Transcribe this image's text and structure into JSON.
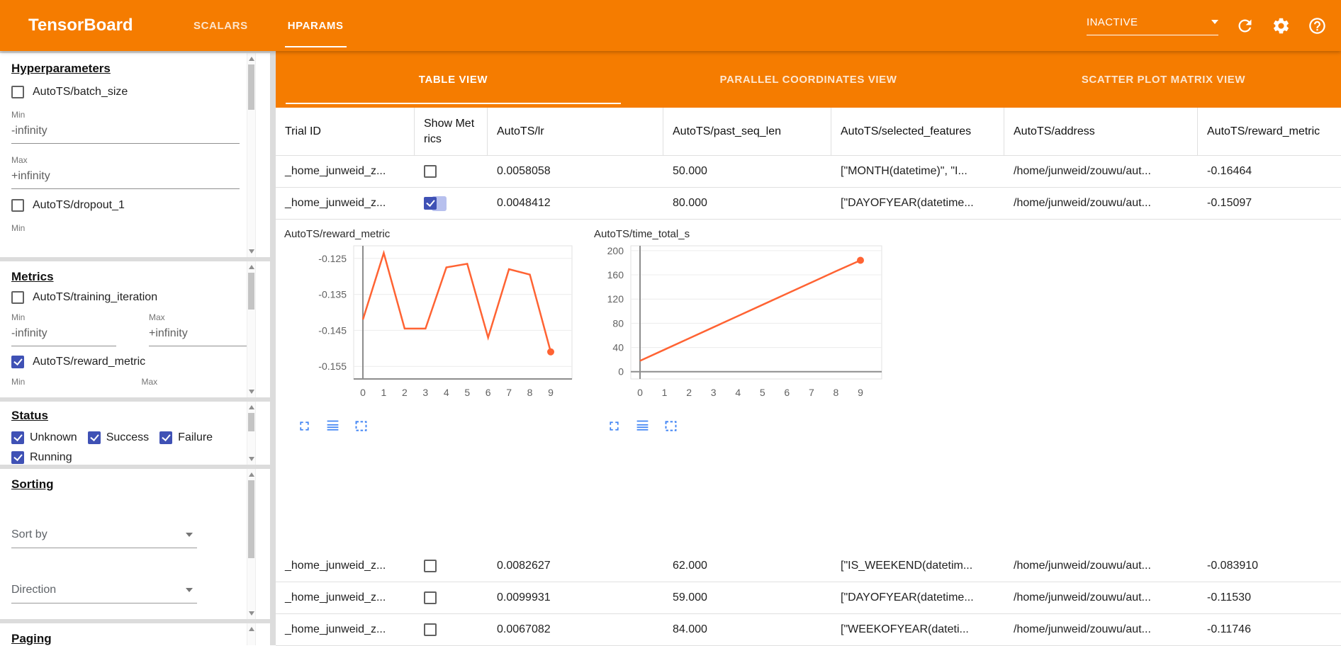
{
  "colors": {
    "header_orange": "#f57c00",
    "checkbox_blue": "#3f51b5",
    "chart_line_orange": "#ff6333",
    "chart_icon_blue": "#4285f4"
  },
  "header": {
    "title": "TensorBoard",
    "nav_tabs": [
      {
        "label": "SCALARS",
        "active": false
      },
      {
        "label": "HPARAMS",
        "active": true
      }
    ],
    "run_selector_value": "INACTIVE"
  },
  "sidebar": {
    "hyperparameters": {
      "title": "Hyperparameters",
      "item1_label": "AutoTS/batch_size",
      "item1_checked": false,
      "item1_min_label": "Min",
      "item1_min_value": "-infinity",
      "item1_max_label": "Max",
      "item1_max_value": "+infinity",
      "item2_label": "AutoTS/dropout_1",
      "item2_checked": false,
      "item2_min_label": "Min"
    },
    "metrics": {
      "title": "Metrics",
      "item1_label": "AutoTS/training_iteration",
      "item1_checked": false,
      "item1_min_label": "Min",
      "item1_min_value": "-infinity",
      "item1_max_label": "Max",
      "item1_max_value": "+infinity",
      "item2_label": "AutoTS/reward_metric",
      "item2_checked": true,
      "item2_min_label": "Min",
      "item2_max_label": "Max"
    },
    "status": {
      "title": "Status",
      "options": [
        {
          "label": "Unknown",
          "checked": true
        },
        {
          "label": "Success",
          "checked": true
        },
        {
          "label": "Failure",
          "checked": true
        },
        {
          "label": "Running",
          "checked": true
        }
      ]
    },
    "sorting": {
      "title": "Sorting",
      "sort_by_label": "Sort by",
      "direction_label": "Direction"
    },
    "paging": {
      "title": "Paging"
    }
  },
  "main": {
    "view_tabs": [
      {
        "label": "TABLE VIEW",
        "active": true
      },
      {
        "label": "PARALLEL COORDINATES VIEW",
        "active": false
      },
      {
        "label": "SCATTER PLOT MATRIX VIEW",
        "active": false
      }
    ],
    "table": {
      "columns": [
        "Trial ID",
        "Show Metrics",
        "AutoTS/lr",
        "AutoTS/past_seq_len",
        "AutoTS/selected_features",
        "AutoTS/address",
        "AutoTS/reward_metric"
      ],
      "rows": [
        {
          "trial_id": "_home_junweid_z...",
          "show_metrics": false,
          "lr": "0.0058058",
          "past_seq_len": "50.000",
          "selected_features": "[\"MONTH(datetime)\", \"I...",
          "address": "/home/junweid/zouwu/aut...",
          "reward_metric": "-0.16464"
        },
        {
          "trial_id": "_home_junweid_z...",
          "show_metrics": true,
          "lr": "0.0048412",
          "past_seq_len": "80.000",
          "selected_features": "[\"DAYOFYEAR(datetime...",
          "address": "/home/junweid/zouwu/aut...",
          "reward_metric": "-0.15097"
        },
        {
          "trial_id": "_home_junweid_z...",
          "show_metrics": false,
          "lr": "0.0082627",
          "past_seq_len": "62.000",
          "selected_features": "[\"IS_WEEKEND(datetim...",
          "address": "/home/junweid/zouwu/aut...",
          "reward_metric": "-0.083910"
        },
        {
          "trial_id": "_home_junweid_z...",
          "show_metrics": false,
          "lr": "0.0099931",
          "past_seq_len": "59.000",
          "selected_features": "[\"DAYOFYEAR(datetime...",
          "address": "/home/junweid/zouwu/aut...",
          "reward_metric": "-0.11530"
        },
        {
          "trial_id": "_home_junweid_z...",
          "show_metrics": false,
          "lr": "0.0067082",
          "past_seq_len": "84.000",
          "selected_features": "[\"WEEKOFYEAR(dateti...",
          "address": "/home/junweid/zouwu/aut...",
          "reward_metric": "-0.11746"
        }
      ]
    }
  },
  "chart_data": [
    {
      "type": "line",
      "title": "AutoTS/reward_metric",
      "x": [
        0,
        1,
        2,
        3,
        4,
        5,
        6,
        7,
        8,
        9
      ],
      "values": [
        -0.142,
        -0.1235,
        -0.1445,
        -0.1445,
        -0.1275,
        -0.1265,
        -0.147,
        -0.128,
        -0.1295,
        -0.15097
      ],
      "ylim": [
        -0.1585,
        -0.1215
      ],
      "yticks": [
        -0.125,
        -0.135,
        -0.145,
        -0.155
      ],
      "ytick_labels": [
        "-0.125",
        "-0.135",
        "-0.145",
        "-0.155"
      ],
      "axis_y": null,
      "color": "#ff6333",
      "end_dot": true,
      "grid": true
    },
    {
      "type": "line",
      "title": "AutoTS/time_total_s",
      "x": [
        0,
        1,
        2,
        3,
        4,
        5,
        6,
        7,
        8,
        9
      ],
      "values": [
        18,
        36.5,
        55,
        73.5,
        92,
        110.5,
        129,
        147.5,
        166,
        184
      ],
      "ylim": [
        -12,
        208
      ],
      "yticks": [
        0,
        40,
        80,
        120,
        160,
        200
      ],
      "ytick_labels": [
        "0",
        "40",
        "80",
        "120",
        "160",
        "200"
      ],
      "axis_y": 0,
      "color": "#ff6333",
      "end_dot": true,
      "grid": true
    }
  ]
}
